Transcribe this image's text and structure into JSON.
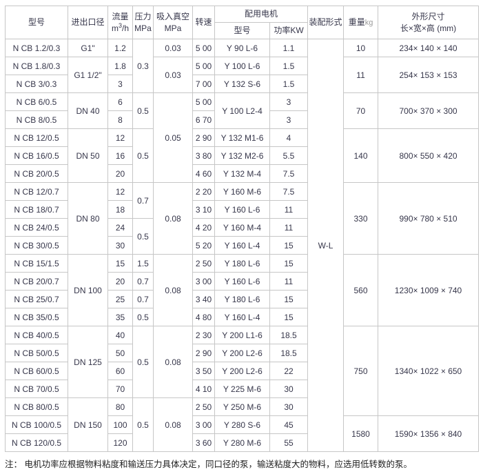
{
  "header": {
    "model": "型号",
    "inlet": "进出口径",
    "flow_title": "流量",
    "flow_unit_m": "m",
    "flow_unit_sup": "3",
    "flow_unit_rest": "/h",
    "pressure_title": "压力",
    "pressure_unit": "MPa",
    "vacuum_title": "吸入真空",
    "vacuum_unit": "MPa",
    "speed": "转速",
    "motor_group": "配用电机",
    "motor_model": "型号",
    "motor_power": "功率KW",
    "assembly": "装配形式",
    "weight_title": "重量",
    "weight_unit": "kg",
    "dims_title": "外形尺寸",
    "dims_unit": "长×宽×高 (mm)"
  },
  "column_keys": [
    "model",
    "inlet-diameter",
    "flow",
    "pressure",
    "vacuum",
    "speed",
    "motor-model",
    "motor-power",
    "assembly-form",
    "weight",
    "dimensions"
  ],
  "rows": [
    [
      {
        "t": "N CB 1.2/0.3"
      },
      {
        "t": "G1\""
      },
      {
        "t": "1.2"
      },
      {
        "t": "0.3",
        "rs": 3
      },
      {
        "t": "0.03"
      },
      {
        "t": "5 00"
      },
      {
        "t": "Y 90 L-6"
      },
      {
        "t": "1.1"
      },
      {
        "t": "W-L",
        "rs": 23
      },
      {
        "t": "10"
      },
      {
        "t": "234× 140 × 140"
      }
    ],
    [
      {
        "t": "N CB 1.8/0.3"
      },
      {
        "t": "G1 1/2\"",
        "rs": 2
      },
      {
        "t": "1.8"
      },
      {
        "t": "0.03",
        "rs": 2
      },
      {
        "t": "5 00"
      },
      {
        "t": "Y 100 L-6"
      },
      {
        "t": "1.5"
      },
      {
        "t": "11",
        "rs": 2
      },
      {
        "t": "254× 153 × 153",
        "rs": 2
      }
    ],
    [
      {
        "t": "N CB 3/0.3"
      },
      {
        "t": "3"
      },
      {
        "t": "7 00"
      },
      {
        "t": "Y 132 S-6"
      },
      {
        "t": "1.5"
      }
    ],
    [
      {
        "t": "N CB 6/0.5"
      },
      {
        "t": "DN 40",
        "rs": 2
      },
      {
        "t": "6"
      },
      {
        "t": "0.5",
        "rs": 2
      },
      {
        "t": "0.05",
        "rs": 5
      },
      {
        "t": "5 00"
      },
      {
        "t": "Y 100 L2-4",
        "rs": 2
      },
      {
        "t": "3"
      },
      {
        "t": "70",
        "rs": 2
      },
      {
        "t": "700× 370 × 300",
        "rs": 2
      }
    ],
    [
      {
        "t": "N CB 8/0.5"
      },
      {
        "t": "8"
      },
      {
        "t": "6 70"
      },
      {
        "t": "3"
      }
    ],
    [
      {
        "t": "N CB 12/0.5"
      },
      {
        "t": "DN 50",
        "rs": 3
      },
      {
        "t": "12"
      },
      {
        "t": "0.5",
        "rs": 3
      },
      {
        "t": "2 90"
      },
      {
        "t": "Y 132 M1-6"
      },
      {
        "t": "4"
      },
      {
        "t": "140",
        "rs": 3
      },
      {
        "t": "800× 550 × 420",
        "rs": 3
      }
    ],
    [
      {
        "t": "N CB 16/0.5"
      },
      {
        "t": "16"
      },
      {
        "t": "3 80"
      },
      {
        "t": "Y 132 M2-6"
      },
      {
        "t": "5.5"
      }
    ],
    [
      {
        "t": "N CB 20/0.5"
      },
      {
        "t": "20"
      },
      {
        "t": "4 60"
      },
      {
        "t": "Y 132 M-4"
      },
      {
        "t": "7.5"
      }
    ],
    [
      {
        "t": "N CB 12/0.7"
      },
      {
        "t": "DN 80",
        "rs": 4
      },
      {
        "t": "12"
      },
      {
        "t": "0.7",
        "rs": 2
      },
      {
        "t": "0.08",
        "rs": 4
      },
      {
        "t": "2 20"
      },
      {
        "t": "Y 160 M-6"
      },
      {
        "t": "7.5"
      },
      {
        "t": "330",
        "rs": 4
      },
      {
        "t": "990× 780 × 510",
        "rs": 4
      }
    ],
    [
      {
        "t": "N CB 18/0.7"
      },
      {
        "t": "18"
      },
      {
        "t": "3 10"
      },
      {
        "t": "Y 160 L-6"
      },
      {
        "t": "11"
      }
    ],
    [
      {
        "t": "N CB 24/0.5"
      },
      {
        "t": "24"
      },
      {
        "t": "0.5",
        "rs": 2
      },
      {
        "t": "4 20"
      },
      {
        "t": "Y 160 M-4"
      },
      {
        "t": "11"
      }
    ],
    [
      {
        "t": "N CB 30/0.5"
      },
      {
        "t": "30"
      },
      {
        "t": "5 20"
      },
      {
        "t": "Y 160 L-4"
      },
      {
        "t": "15"
      }
    ],
    [
      {
        "t": "N CB 15/1.5"
      },
      {
        "t": "DN 100",
        "rs": 4
      },
      {
        "t": "15"
      },
      {
        "t": "1.5"
      },
      {
        "t": "0.08",
        "rs": 4
      },
      {
        "t": "2 50"
      },
      {
        "t": "Y 180 L-6"
      },
      {
        "t": "15"
      },
      {
        "t": "560",
        "rs": 4
      },
      {
        "t": "1230× 1009 × 740",
        "rs": 4
      }
    ],
    [
      {
        "t": "N CB 20/0.7"
      },
      {
        "t": "20"
      },
      {
        "t": "0.7"
      },
      {
        "t": "3 00"
      },
      {
        "t": "Y 160 L-6"
      },
      {
        "t": "11"
      }
    ],
    [
      {
        "t": "N CB 25/0.7"
      },
      {
        "t": "25"
      },
      {
        "t": "0.7"
      },
      {
        "t": "3 40"
      },
      {
        "t": "Y 180 L-6"
      },
      {
        "t": "15"
      }
    ],
    [
      {
        "t": "N CB 35/0.5"
      },
      {
        "t": "35"
      },
      {
        "t": "0.5"
      },
      {
        "t": "4 80"
      },
      {
        "t": "Y 160 L-4"
      },
      {
        "t": "15"
      }
    ],
    [
      {
        "t": "N CB 40/0.5"
      },
      {
        "t": "DN 125",
        "rs": 4
      },
      {
        "t": "40"
      },
      {
        "t": "0.5",
        "rs": 4
      },
      {
        "t": "0.08",
        "rs": 4
      },
      {
        "t": "2 30"
      },
      {
        "t": "Y 200 L1-6"
      },
      {
        "t": "18.5"
      },
      {
        "t": "750",
        "rs": 5
      },
      {
        "t": "1340× 1022 × 650",
        "rs": 5
      }
    ],
    [
      {
        "t": "N CB 50/0.5"
      },
      {
        "t": "50"
      },
      {
        "t": "2 90"
      },
      {
        "t": "Y 200 L2-6"
      },
      {
        "t": "18.5"
      }
    ],
    [
      {
        "t": "N CB 60/0.5"
      },
      {
        "t": "60"
      },
      {
        "t": "3 50"
      },
      {
        "t": "Y 200 L2-6"
      },
      {
        "t": "22"
      }
    ],
    [
      {
        "t": "N CB 70/0.5"
      },
      {
        "t": "70"
      },
      {
        "t": "4 10"
      },
      {
        "t": "Y 225 M-6"
      },
      {
        "t": "30"
      }
    ],
    [
      {
        "t": "N CB 80/0.5"
      },
      {
        "t": "DN 150",
        "rs": 3
      },
      {
        "t": "80"
      },
      {
        "t": "0.5",
        "rs": 3
      },
      {
        "t": "0.08",
        "rs": 3
      },
      {
        "t": "2 50"
      },
      {
        "t": "Y 250 M-6"
      },
      {
        "t": "30"
      }
    ],
    [
      {
        "t": "N CB 100/0.5"
      },
      {
        "t": "100"
      },
      {
        "t": "3 00"
      },
      {
        "t": "Y 280 S-6"
      },
      {
        "t": "45"
      },
      {
        "t": "1580",
        "rs": 2
      },
      {
        "t": "1590× 1356 × 840",
        "rs": 2
      }
    ],
    [
      {
        "t": "N CB 120/0.5"
      },
      {
        "t": "120"
      },
      {
        "t": "3 60"
      },
      {
        "t": "Y 280 M-6"
      },
      {
        "t": "55"
      }
    ]
  ],
  "note": "注： 电机功率应根据物料粘度和输送压力具体决定，同口径的泵，输送粘度大的物料，应选用低转数的泵。",
  "colors": {
    "border": "#c6c6c6",
    "text": "#36364a",
    "unit_text": "#9a9a9a",
    "note_text": "#1f1f1f"
  }
}
